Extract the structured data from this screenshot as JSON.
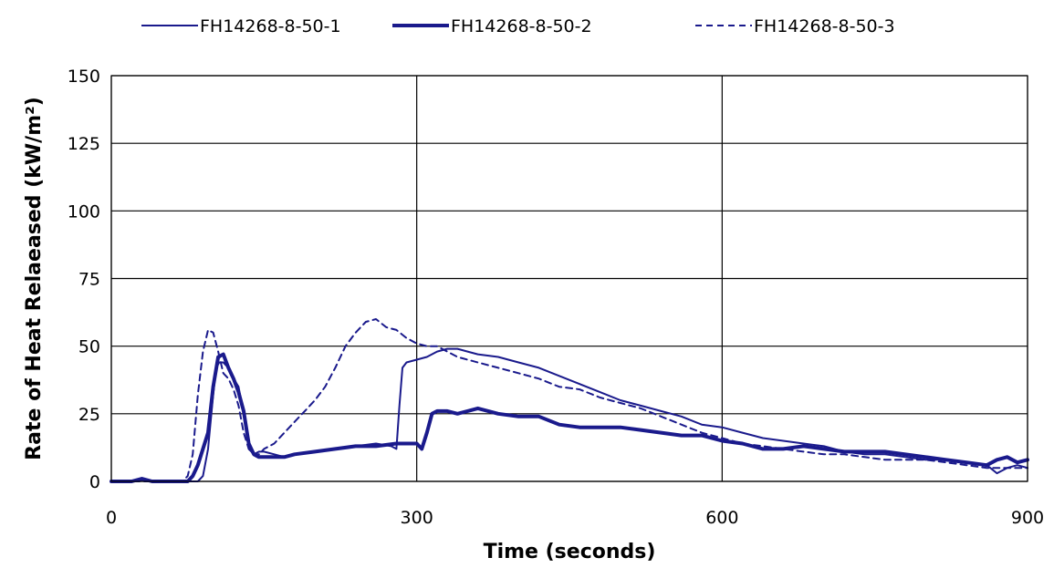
{
  "chart_data": {
    "type": "line",
    "title": "",
    "xlabel": "Time (seconds)",
    "ylabel": "Rate of Heat Relaeased (kW/m²)",
    "xlim": [
      0,
      900
    ],
    "ylim": [
      0,
      150
    ],
    "xticks": [
      0,
      300,
      600,
      900
    ],
    "yticks": [
      0,
      25,
      50,
      75,
      100,
      125,
      150
    ],
    "xtick_labels": [
      "0",
      "300",
      "600",
      "900"
    ],
    "ytick_labels": [
      "0",
      "25",
      "50",
      "75",
      "100",
      "125",
      "150"
    ],
    "grid": "major lines on both axes",
    "legend_position": "top",
    "line_color": "#1A1A8C",
    "series": [
      {
        "name": "FH14268-8-50-1",
        "style": "thin",
        "x": [
          0,
          20,
          30,
          40,
          60,
          80,
          85,
          90,
          95,
          100,
          103,
          106,
          110,
          115,
          120,
          125,
          130,
          135,
          140,
          145,
          150,
          160,
          170,
          180,
          200,
          220,
          240,
          260,
          275,
          280,
          283,
          286,
          290,
          300,
          310,
          320,
          330,
          340,
          350,
          360,
          380,
          400,
          420,
          440,
          460,
          480,
          500,
          520,
          540,
          560,
          580,
          600,
          620,
          640,
          660,
          680,
          700,
          720,
          740,
          760,
          780,
          800,
          820,
          840,
          860,
          870,
          880,
          890,
          900
        ],
        "y": [
          0,
          0,
          1,
          0,
          0,
          0,
          0,
          2,
          12,
          32,
          42,
          44,
          44,
          42,
          38,
          35,
          25,
          12,
          10,
          11,
          11,
          10,
          9,
          10,
          11,
          12,
          13,
          14,
          13,
          12,
          28,
          42,
          44,
          45,
          46,
          48,
          49,
          49,
          48,
          47,
          46,
          44,
          42,
          39,
          36,
          33,
          30,
          28,
          26,
          24,
          21,
          20,
          18,
          16,
          15,
          14,
          13,
          11,
          10,
          10,
          9,
          8,
          8,
          7,
          6,
          3,
          5,
          6,
          5
        ]
      },
      {
        "name": "FH14268-8-50-2",
        "style": "thick",
        "x": [
          0,
          20,
          30,
          40,
          60,
          75,
          80,
          85,
          90,
          95,
          100,
          105,
          110,
          115,
          120,
          125,
          130,
          135,
          140,
          145,
          150,
          160,
          170,
          180,
          200,
          220,
          240,
          260,
          280,
          300,
          305,
          310,
          315,
          320,
          330,
          340,
          350,
          360,
          380,
          400,
          420,
          440,
          460,
          480,
          500,
          520,
          540,
          560,
          580,
          600,
          620,
          640,
          660,
          680,
          700,
          720,
          740,
          760,
          780,
          800,
          820,
          840,
          860,
          870,
          880,
          890,
          900
        ],
        "y": [
          0,
          0,
          1,
          0,
          0,
          0,
          2,
          6,
          12,
          18,
          35,
          46,
          47,
          42,
          38,
          33,
          26,
          14,
          10,
          9,
          9,
          9,
          9,
          10,
          11,
          12,
          13,
          13,
          14,
          14,
          12,
          18,
          25,
          26,
          26,
          25,
          26,
          27,
          25,
          24,
          24,
          21,
          20,
          20,
          20,
          19,
          18,
          17,
          17,
          15,
          14,
          12,
          12,
          13,
          12,
          11,
          11,
          11,
          10,
          9,
          8,
          7,
          6,
          8,
          9,
          7,
          8
        ]
      },
      {
        "name": "FH14268-8-50-3",
        "style": "dashed",
        "x": [
          0,
          20,
          30,
          40,
          60,
          70,
          75,
          80,
          85,
          90,
          95,
          100,
          105,
          110,
          115,
          120,
          125,
          130,
          135,
          140,
          145,
          150,
          160,
          170,
          180,
          190,
          200,
          210,
          220,
          230,
          240,
          250,
          260,
          270,
          280,
          290,
          300,
          310,
          320,
          330,
          340,
          350,
          360,
          380,
          400,
          420,
          440,
          460,
          480,
          500,
          520,
          540,
          560,
          580,
          600,
          620,
          640,
          660,
          680,
          700,
          720,
          740,
          760,
          780,
          800,
          820,
          840,
          860,
          880,
          900
        ],
        "y": [
          0,
          0,
          0,
          0,
          0,
          0,
          2,
          10,
          32,
          48,
          56,
          55,
          48,
          40,
          38,
          34,
          28,
          18,
          12,
          10,
          10,
          12,
          14,
          18,
          22,
          26,
          30,
          35,
          42,
          50,
          55,
          59,
          60,
          57,
          56,
          53,
          51,
          50,
          50,
          48,
          46,
          45,
          44,
          42,
          40,
          38,
          35,
          34,
          31,
          29,
          27,
          24,
          21,
          18,
          16,
          14,
          13,
          12,
          11,
          10,
          10,
          9,
          8,
          8,
          8,
          7,
          6,
          5,
          5,
          5
        ]
      }
    ]
  }
}
